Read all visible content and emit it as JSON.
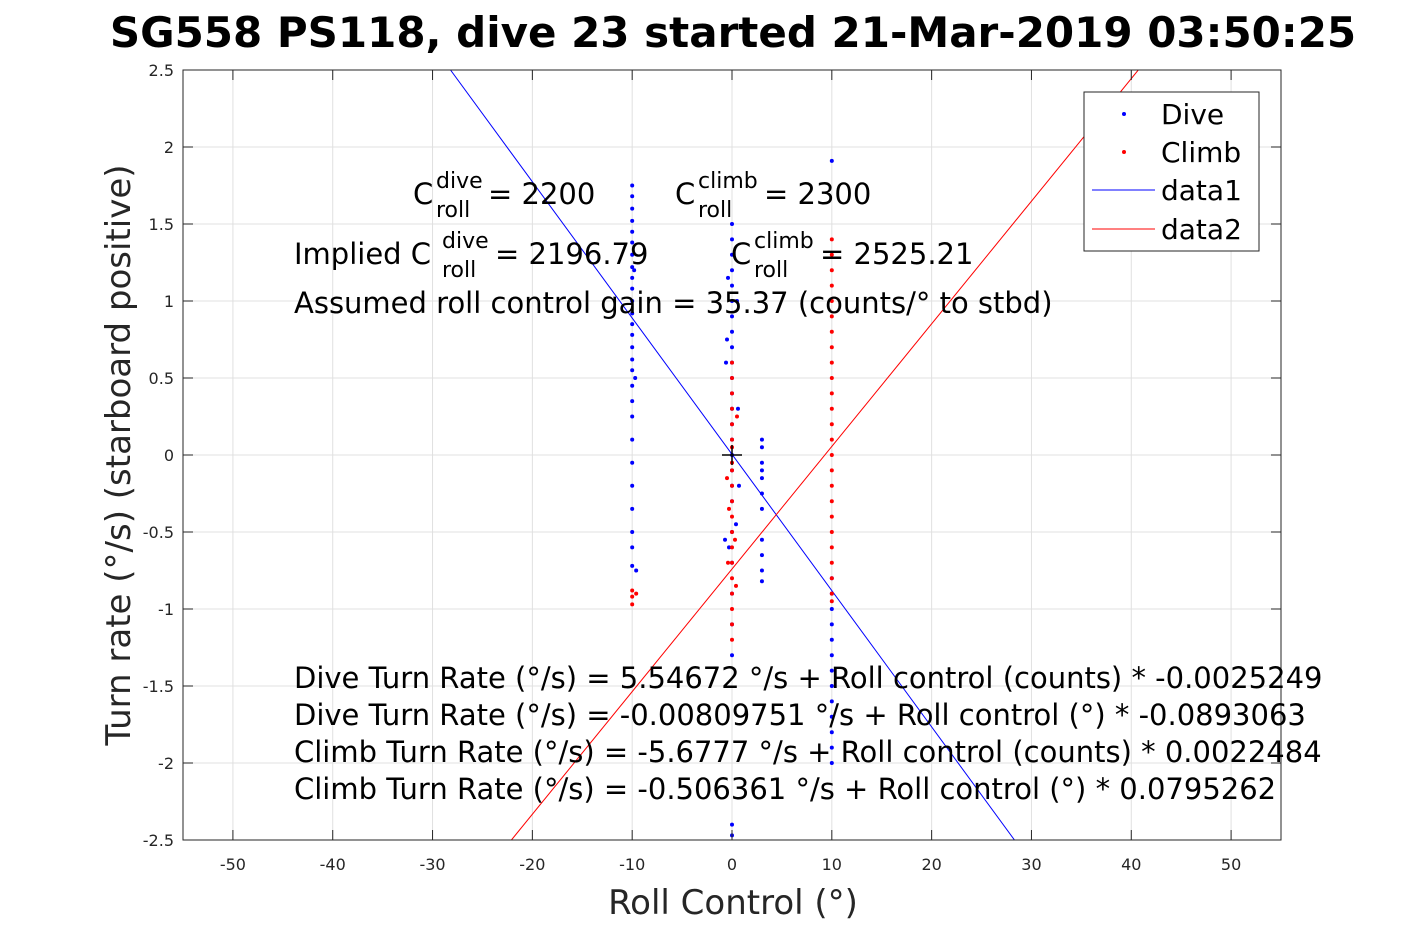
{
  "chart_data": {
    "type": "scatter",
    "title": "SG558 PS118, dive 23 started 21-Mar-2019 03:50:25",
    "xlabel": "Roll Control (°)",
    "ylabel": "Turn rate (°/s) (starboard positive)",
    "xlim": [
      -55,
      55
    ],
    "ylim": [
      -2.5,
      2.5
    ],
    "xticks": [
      "-50",
      "-40",
      "-30",
      "-20",
      "-10",
      "0",
      "10",
      "20",
      "30",
      "40",
      "50"
    ],
    "yticks": [
      "2.5",
      "2",
      "1.5",
      "1",
      "0.5",
      "0",
      "-0.5",
      "-1",
      "-1.5",
      "-2",
      "-2.5"
    ],
    "grid": true,
    "legend_position": "top-right",
    "legend": [
      "Dive",
      "Climb",
      "data1",
      "data2"
    ],
    "colors": {
      "dive": "#0000ff",
      "climb": "#ff0000",
      "axis": "#262626",
      "grid": "#e0e0e0"
    },
    "series": [
      {
        "name": "Dive",
        "kind": "points",
        "points": [
          [
            -10,
            1.75
          ],
          [
            -10,
            1.68
          ],
          [
            -10,
            1.6
          ],
          [
            -10,
            1.52
          ],
          [
            -10,
            1.45
          ],
          [
            -10,
            1.38
          ],
          [
            -10,
            1.3
          ],
          [
            -10,
            1.22
          ],
          [
            -10,
            1.15
          ],
          [
            -10,
            1.08
          ],
          [
            -10,
            1.0
          ],
          [
            -10,
            0.92
          ],
          [
            -10,
            0.85
          ],
          [
            -10,
            0.78
          ],
          [
            -10,
            0.7
          ],
          [
            -10,
            0.62
          ],
          [
            -10,
            0.55
          ],
          [
            -10,
            0.45
          ],
          [
            -10,
            0.35
          ],
          [
            -10,
            0.25
          ],
          [
            -10,
            0.1
          ],
          [
            -10,
            -0.05
          ],
          [
            -10,
            -0.2
          ],
          [
            -10,
            -0.35
          ],
          [
            -10,
            -0.5
          ],
          [
            -10,
            -0.6
          ],
          [
            -10,
            -0.72
          ],
          [
            -9.6,
            -0.75
          ],
          [
            -9.7,
            0.5
          ],
          [
            -9.8,
            1.2
          ],
          [
            0,
            1.5
          ],
          [
            0,
            1.4
          ],
          [
            0,
            1.3
          ],
          [
            0,
            1.2
          ],
          [
            0,
            1.1
          ],
          [
            0,
            1.0
          ],
          [
            0,
            0.9
          ],
          [
            0,
            0.8
          ],
          [
            0,
            0.7
          ],
          [
            0,
            0.6
          ],
          [
            0,
            0.5
          ],
          [
            0,
            0.4
          ],
          [
            0,
            0.3
          ],
          [
            0,
            0.2
          ],
          [
            0,
            0.1
          ],
          [
            0,
            0.0
          ],
          [
            0,
            -0.1
          ],
          [
            0,
            -0.2
          ],
          [
            0,
            -0.3
          ],
          [
            0,
            -0.5
          ],
          [
            0,
            -0.7
          ],
          [
            0,
            -0.9
          ],
          [
            0,
            -1.1
          ],
          [
            0,
            -1.3
          ],
          [
            0,
            -2.4
          ],
          [
            0,
            -2.47
          ],
          [
            -0.5,
            0.75
          ],
          [
            -0.6,
            0.6
          ],
          [
            -0.7,
            -0.55
          ],
          [
            -0.4,
            1.15
          ],
          [
            0.5,
            1.0
          ],
          [
            0.6,
            0.3
          ],
          [
            0.4,
            -0.45
          ],
          [
            -0.3,
            -0.6
          ],
          [
            0.7,
            -0.2
          ],
          [
            3,
            0.1
          ],
          [
            3,
            0.05
          ],
          [
            3,
            -0.05
          ],
          [
            3,
            -0.1
          ],
          [
            3,
            -0.15
          ],
          [
            3,
            -0.25
          ],
          [
            3,
            -0.35
          ],
          [
            3,
            -0.55
          ],
          [
            3,
            -0.65
          ],
          [
            3,
            -0.75
          ],
          [
            3,
            -0.82
          ],
          [
            10,
            1.91
          ],
          [
            10,
            -0.8
          ],
          [
            10,
            -0.9
          ],
          [
            10,
            -1.0
          ],
          [
            10,
            -1.1
          ],
          [
            10,
            -1.2
          ],
          [
            10,
            -1.3
          ],
          [
            10,
            -1.4
          ],
          [
            10,
            -1.5
          ],
          [
            10,
            -1.6
          ],
          [
            10,
            -1.7
          ],
          [
            10,
            -1.8
          ],
          [
            10,
            -1.9
          ],
          [
            10,
            -2.0
          ]
        ]
      },
      {
        "name": "Climb",
        "kind": "points",
        "points": [
          [
            -10,
            -0.88
          ],
          [
            -10,
            -0.92
          ],
          [
            -10,
            -0.97
          ],
          [
            -9.6,
            -0.9
          ],
          [
            0,
            0.6
          ],
          [
            0,
            0.5
          ],
          [
            0,
            0.4
          ],
          [
            0,
            0.3
          ],
          [
            0,
            0.2
          ],
          [
            0,
            0.1
          ],
          [
            0,
            0.05
          ],
          [
            0,
            -0.05
          ],
          [
            0,
            -0.1
          ],
          [
            0,
            -0.2
          ],
          [
            0,
            -0.3
          ],
          [
            0,
            -0.4
          ],
          [
            0,
            -0.5
          ],
          [
            0,
            -0.6
          ],
          [
            0,
            -0.7
          ],
          [
            0,
            -0.8
          ],
          [
            0,
            -0.9
          ],
          [
            0,
            -1.0
          ],
          [
            0,
            -1.1
          ],
          [
            0,
            -1.2
          ],
          [
            -0.3,
            -0.35
          ],
          [
            0.3,
            -0.55
          ],
          [
            -0.5,
            -0.15
          ],
          [
            0.5,
            0.25
          ],
          [
            -0.4,
            -0.7
          ],
          [
            0.4,
            -0.85
          ],
          [
            10,
            1.4
          ],
          [
            10,
            1.3
          ],
          [
            10,
            1.2
          ],
          [
            10,
            1.1
          ],
          [
            10,
            1.0
          ],
          [
            10,
            0.9
          ],
          [
            10,
            0.8
          ],
          [
            10,
            0.7
          ],
          [
            10,
            0.6
          ],
          [
            10,
            0.5
          ],
          [
            10,
            0.4
          ],
          [
            10,
            0.3
          ],
          [
            10,
            0.2
          ],
          [
            10,
            0.1
          ],
          [
            10,
            0.0
          ],
          [
            10,
            -0.1
          ],
          [
            10,
            -0.2
          ],
          [
            10,
            -0.3
          ],
          [
            10,
            -0.4
          ],
          [
            10,
            -0.5
          ],
          [
            10,
            -0.6
          ],
          [
            10,
            -0.7
          ],
          [
            10,
            -0.8
          ],
          [
            10,
            -0.9
          ],
          [
            10,
            -0.95
          ]
        ]
      },
      {
        "name": "data1",
        "kind": "line",
        "points": [
          [
            -28.2,
            2.5
          ],
          [
            28.3,
            -2.5
          ]
        ]
      },
      {
        "name": "data2",
        "kind": "line",
        "points": [
          [
            -22.1,
            -2.5
          ],
          [
            40.7,
            2.5
          ]
        ]
      }
    ],
    "annotations": {
      "c_dive_base": "C",
      "c_dive_sup": "dive",
      "c_dive_sub": "roll",
      "c_dive_val": " = 2200",
      "c_climb_base": "C",
      "c_climb_sup": "climb",
      "c_climb_sub": "roll",
      "c_climb_val": " = 2300",
      "implied_prefix": "Implied C",
      "implied_dive_sup": "dive",
      "implied_dive_sub": "roll",
      "implied_dive_val": " = 2196.79",
      "implied_climb_base": "C",
      "implied_climb_sup": "climb",
      "implied_climb_sub": "roll",
      "implied_climb_val": " = 2525.21",
      "gain": "Assumed roll control gain = 35.37 (counts/° to stbd)",
      "eq1": "Dive Turn Rate (°/s) = 5.54672 °/s + Roll control (counts) * -0.0025249",
      "eq2": "Dive Turn Rate (°/s) = -0.00809751 °/s + Roll control (°) * -0.0893063",
      "eq3": "Climb Turn Rate (°/s) = -5.6777 °/s + Roll control (counts) * 0.0022484",
      "eq4": "Climb Turn Rate (°/s) = -0.506361 °/s + Roll control (°) * 0.0795262"
    }
  }
}
